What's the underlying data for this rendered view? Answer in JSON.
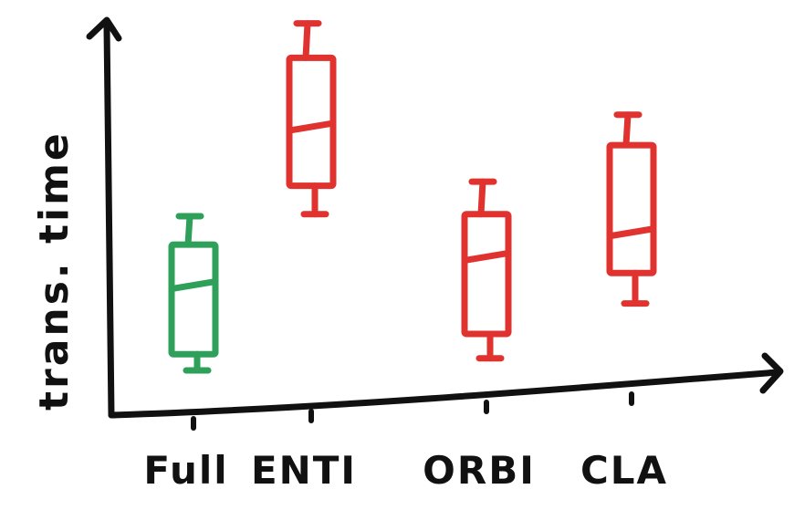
{
  "chart_data": {
    "type": "box",
    "ylabel": "trans. time",
    "xlabel": "",
    "categories": [
      "Full",
      "ENTI",
      "ORBI",
      "CLA"
    ],
    "boxes": [
      {
        "category": "Full",
        "min": 2.2,
        "q1": 3.0,
        "median": 6.4,
        "q3": 8.4,
        "max": 9.8,
        "color": "#2ea05a"
      },
      {
        "category": "ENTI",
        "min": 9.9,
        "q1": 11.3,
        "median": 14.2,
        "q3": 17.6,
        "max": 19.3,
        "color": "#e0322e"
      },
      {
        "category": "ORBI",
        "min": 2.8,
        "q1": 4.0,
        "median": 7.8,
        "q3": 9.9,
        "max": 11.5,
        "color": "#e0322e"
      },
      {
        "category": "CLA",
        "min": 5.5,
        "q1": 7.0,
        "median": 9.0,
        "q3": 13.3,
        "max": 14.8,
        "color": "#e0322e"
      }
    ],
    "ylim": [
      0,
      20
    ],
    "grid": false
  }
}
